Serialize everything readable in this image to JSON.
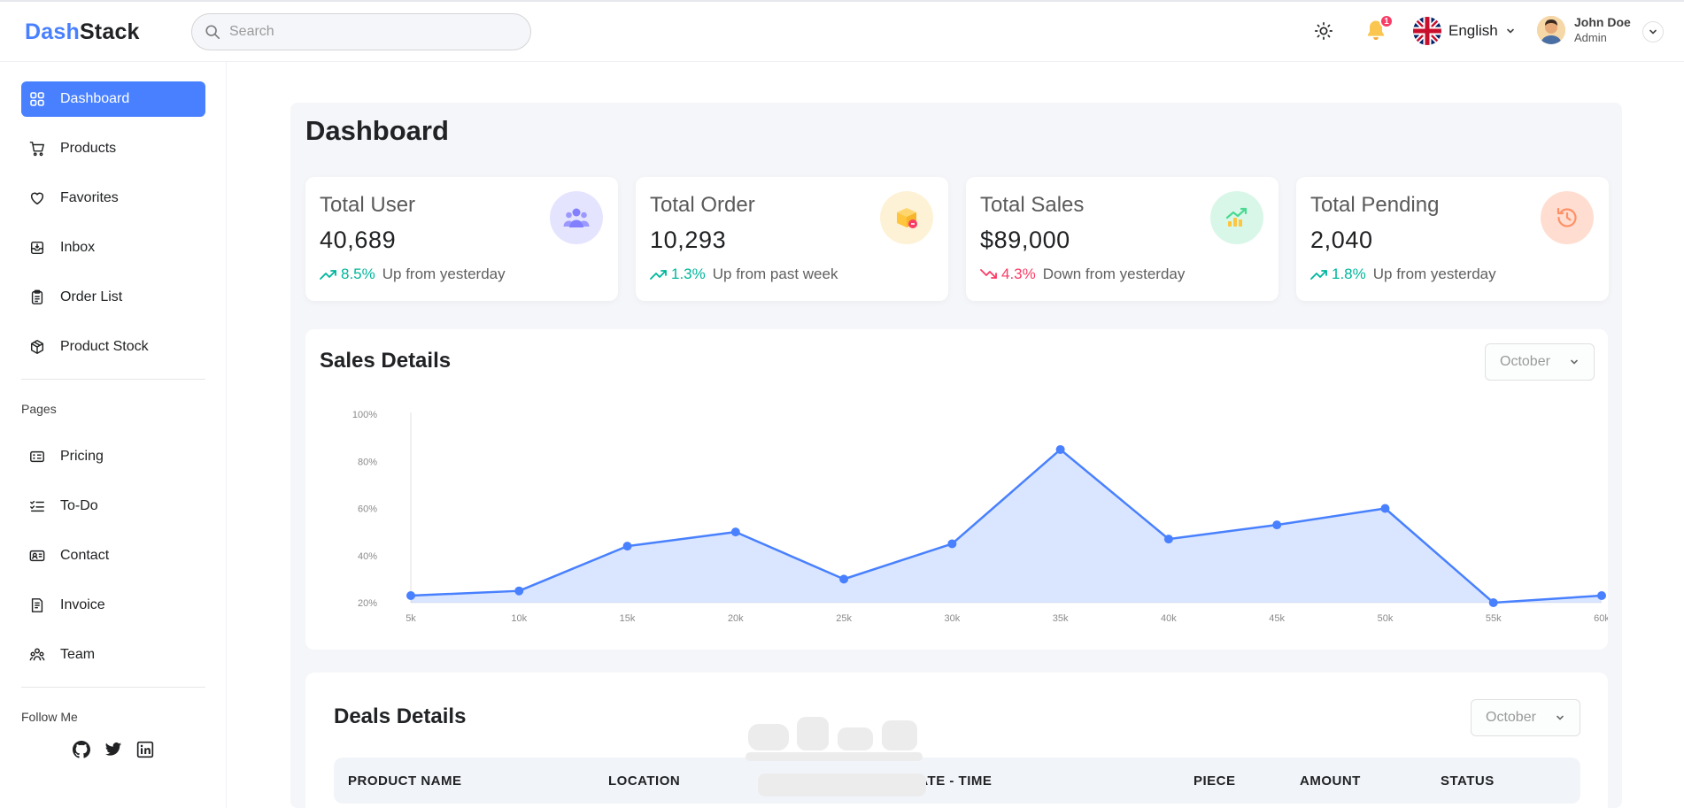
{
  "app": {
    "logo_part1": "Dash",
    "logo_part2": "Stack"
  },
  "header": {
    "search_placeholder": "Search",
    "notification_count": "1",
    "language": "English",
    "user_name": "John Doe",
    "user_role": "Admin"
  },
  "sidebar": {
    "items": [
      {
        "label": "Dashboard",
        "icon": "dashboard-icon",
        "active": true
      },
      {
        "label": "Products",
        "icon": "cart-icon"
      },
      {
        "label": "Favorites",
        "icon": "heart-icon"
      },
      {
        "label": "Inbox",
        "icon": "inbox-icon"
      },
      {
        "label": "Order List",
        "icon": "clipboard-icon"
      },
      {
        "label": "Product Stock",
        "icon": "box-icon"
      }
    ],
    "pages_title": "Pages",
    "pages": [
      {
        "label": "Pricing",
        "icon": "pricing-icon"
      },
      {
        "label": "To-Do",
        "icon": "todo-icon"
      },
      {
        "label": "Contact",
        "icon": "contact-icon"
      },
      {
        "label": "Invoice",
        "icon": "invoice-icon"
      },
      {
        "label": "Team",
        "icon": "team-icon"
      }
    ],
    "follow_title": "Follow Me",
    "social": [
      "github-icon",
      "twitter-icon",
      "linkedin-icon"
    ]
  },
  "page": {
    "title": "Dashboard"
  },
  "stats": [
    {
      "title": "Total User",
      "value": "40,689",
      "pct": "8.5%",
      "text": "Up from yesterday",
      "dir": "up",
      "icon": "users-icon",
      "color": "#8280FF"
    },
    {
      "title": "Total Order",
      "value": "10,293",
      "pct": "1.3%",
      "text": "Up from past week",
      "dir": "up",
      "icon": "order-box-icon",
      "color": "#FEC53D"
    },
    {
      "title": "Total Sales",
      "value": "$89,000",
      "pct": "4.3%",
      "text": "Down from yesterday",
      "dir": "down",
      "icon": "sales-chart-icon",
      "color": "#4AD991"
    },
    {
      "title": "Total Pending",
      "value": "2,040",
      "pct": "1.8%",
      "text": "Up from yesterday",
      "dir": "up",
      "icon": "history-icon",
      "color": "#FF9066"
    }
  ],
  "colors": {
    "accent": "#4880FF",
    "up": "#00B69B",
    "down": "#F93C65"
  },
  "sales": {
    "title": "Sales Details",
    "month": "October"
  },
  "chart_data": {
    "type": "area",
    "title": "Sales Details",
    "x": [
      "5k",
      "10k",
      "15k",
      "20k",
      "25k",
      "30k",
      "35k",
      "40k",
      "45k",
      "50k",
      "55k",
      "60k"
    ],
    "y_ticks": [
      "100%",
      "80%",
      "60%",
      "40%",
      "20%"
    ],
    "ylim": [
      20,
      100
    ],
    "series": [
      {
        "values": [
          23,
          25,
          44,
          50,
          30,
          45,
          85,
          47,
          53,
          60,
          20,
          23
        ]
      }
    ],
    "grid": false,
    "color": "#4880FF"
  },
  "deals": {
    "title": "Deals Details",
    "month": "October",
    "columns": [
      "PRODUCT NAME",
      "LOCATION",
      "DATE - TIME",
      "PIECE",
      "AMOUNT",
      "STATUS"
    ]
  }
}
